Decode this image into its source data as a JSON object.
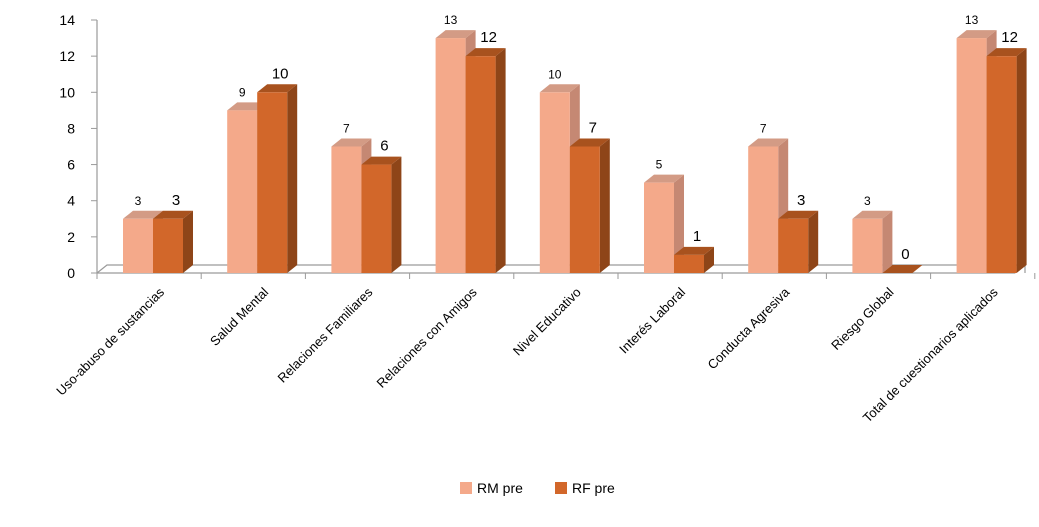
{
  "chart_data": {
    "type": "bar",
    "title": "",
    "xlabel": "",
    "ylabel": "",
    "ylim": [
      0,
      14
    ],
    "yticks": [
      0,
      2,
      4,
      6,
      8,
      10,
      12,
      14
    ],
    "grid": false,
    "legend_position": "bottom",
    "categories": [
      "Uso-abuso de sustancias",
      "Salud Mental",
      "Relaciones Familiares",
      "Relaciones con Amigos",
      "Nivel Educativo",
      "Interés Laboral",
      "Conducta Agresiva",
      "Riesgo Global",
      "Total de cuestionarios aplicados"
    ],
    "series": [
      {
        "name": "RM pre",
        "values": [
          3,
          9,
          7,
          13,
          10,
          5,
          7,
          3,
          13
        ],
        "color": "#F4A98A",
        "side_color": "#C58873",
        "top_color": "#D39B85"
      },
      {
        "name": "RF pre",
        "values": [
          3,
          10,
          6,
          12,
          7,
          1,
          3,
          0,
          12
        ],
        "color": "#D2672A",
        "side_color": "#8E4518",
        "top_color": "#A8521E"
      }
    ]
  }
}
